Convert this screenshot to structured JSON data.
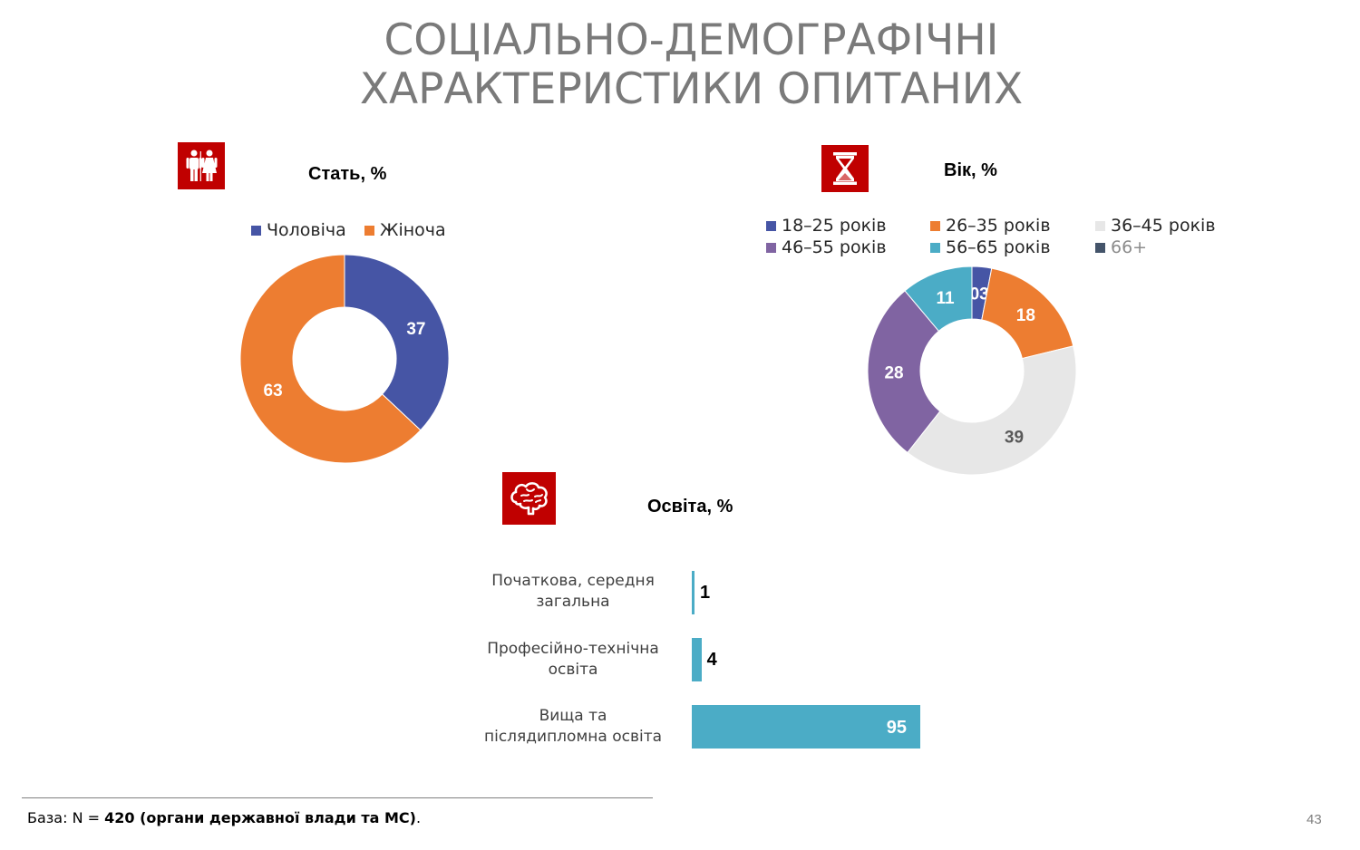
{
  "slide": {
    "title_line1": "СОЦІАЛЬНО-ДЕМОГРАФІЧНІ",
    "title_line2": "ХАРАКТЕРИСТИКИ ОПИТАНИХ",
    "page_number": "43"
  },
  "footer": {
    "prefix": "База: N = ",
    "bold": "420 (органи державної влади та МС)",
    "suffix": "."
  },
  "icons": {
    "gender": "people-icon",
    "age": "hourglass-icon",
    "education": "brain-icon"
  },
  "chart_data": [
    {
      "type": "pie",
      "title": "Стать, %",
      "categories": [
        "Чоловіча",
        "Жіноча"
      ],
      "values": [
        37,
        63
      ],
      "labels": [
        "37",
        "63"
      ],
      "colors": [
        "#4655a5",
        "#ed7d31"
      ],
      "legend": "top",
      "donut": true
    },
    {
      "type": "pie",
      "title": "Вік, %",
      "categories": [
        "18–25 років",
        "26–35 років",
        "36–45 років",
        "46–55 років",
        "56–65 років",
        "66+"
      ],
      "values": [
        3,
        18,
        39,
        28,
        11,
        0
      ],
      "labels": [
        "03",
        "18",
        "39",
        "28",
        "11",
        ""
      ],
      "colors": [
        "#4655a5",
        "#ed7d31",
        "#e7e7e7",
        "#8064a2",
        "#4bacc6",
        "#44546a"
      ],
      "legend": "top",
      "donut": true
    },
    {
      "type": "bar",
      "orientation": "horizontal",
      "title": "Освіта, %",
      "categories": [
        "Початкова, середня загальна",
        "Професійно-технічна освіта",
        "Вища та післядипломна освіта"
      ],
      "category_lines": [
        [
          "Початкова, середня",
          "загальна"
        ],
        [
          "Професійно-технічна",
          "освіта"
        ],
        [
          "Вища та",
          "післядипломна освіта"
        ]
      ],
      "values": [
        1,
        4,
        95
      ],
      "labels": [
        "1",
        "4",
        "95"
      ],
      "color": "#4bacc6"
    }
  ]
}
